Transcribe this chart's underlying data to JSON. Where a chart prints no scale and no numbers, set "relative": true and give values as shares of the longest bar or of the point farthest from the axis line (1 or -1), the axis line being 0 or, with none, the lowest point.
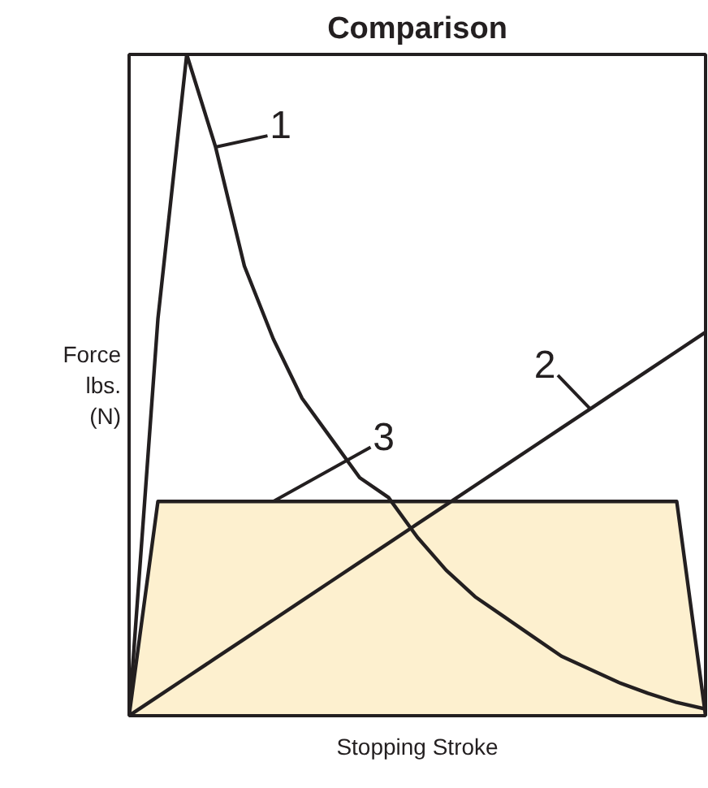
{
  "chart_data": {
    "type": "line",
    "title": "Comparison",
    "xlabel": "Stopping Stroke",
    "ylabel": "Force\nlbs.\n(N)",
    "relative": true,
    "grid": false,
    "marker": "none",
    "line_style": "solid",
    "categories": [
      null,
      null,
      null,
      null,
      null,
      null,
      null,
      null,
      null,
      null,
      null,
      null,
      null,
      null,
      null,
      null,
      null,
      null,
      null,
      null,
      null
    ],
    "series": [
      {
        "name": "1",
        "color": "#231f20",
        "values": [
          0,
          0.6,
          1.0,
          0.86,
          0.68,
          0.57,
          0.48,
          0.42,
          0.36,
          0.33,
          0.27,
          0.22,
          0.18,
          0.15,
          0.12,
          0.09,
          0.07,
          0.05,
          0.034,
          0.02,
          0.01
        ]
      },
      {
        "name": "2",
        "color": "#231f20",
        "values": [
          0,
          0.029,
          0.058,
          0.087,
          0.116,
          0.145,
          0.174,
          0.203,
          0.232,
          0.261,
          0.29,
          0.319,
          0.348,
          0.377,
          0.406,
          0.435,
          0.464,
          0.493,
          0.522,
          0.551,
          0.58
        ]
      },
      {
        "name": "3",
        "type": "area",
        "color": "#fdf0cf",
        "values": [
          0,
          0.324,
          0.324,
          0.324,
          0.324,
          0.324,
          0.324,
          0.324,
          0.324,
          0.324,
          0.324,
          0.324,
          0.324,
          0.324,
          0.324,
          0.324,
          0.324,
          0.324,
          0.324,
          0.324,
          0
        ]
      }
    ]
  }
}
